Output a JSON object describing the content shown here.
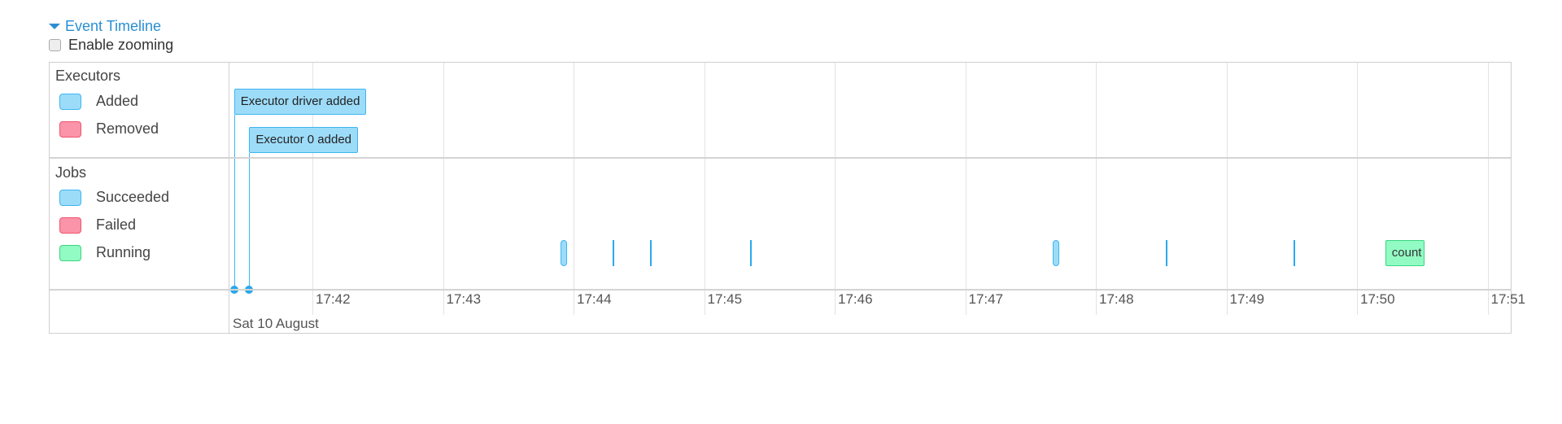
{
  "header": {
    "title": "Event Timeline",
    "zoom_label": "Enable zooming",
    "zoom_checked": false
  },
  "legend": {
    "executors": {
      "label": "Executors",
      "items": [
        {
          "label": "Added",
          "color": "#9ddcf9",
          "border": "#3db5f0"
        },
        {
          "label": "Removed",
          "color": "#fb93a9",
          "border": "#f0546f"
        }
      ]
    },
    "jobs": {
      "label": "Jobs",
      "items": [
        {
          "label": "Succeeded",
          "color": "#9ddcf9",
          "border": "#3db5f0"
        },
        {
          "label": "Failed",
          "color": "#fb93a9",
          "border": "#f0546f"
        },
        {
          "label": "Running",
          "color": "#92fbc4",
          "border": "#3ad67f"
        }
      ]
    }
  },
  "axis": {
    "date": "Sat 10 August",
    "ticks": [
      "17:42",
      "17:43",
      "17:44",
      "17:45",
      "17:46",
      "17:47",
      "17:48",
      "17:49",
      "17:50",
      "17:51"
    ]
  },
  "executor_events": [
    {
      "label": "Executor driver added",
      "time": "17:41:24",
      "status": "added"
    },
    {
      "label": "Executor 0 added",
      "time": "17:41:31",
      "status": "added"
    }
  ],
  "job_events": [
    {
      "start": "17:43:54",
      "end": "17:43:57",
      "status": "succeeded"
    },
    {
      "start": "17:44:18",
      "end": "17:44:18",
      "status": "succeeded"
    },
    {
      "start": "17:44:35",
      "end": "17:44:35",
      "status": "succeeded"
    },
    {
      "start": "17:45:21",
      "end": "17:45:21",
      "status": "succeeded"
    },
    {
      "start": "17:47:40",
      "end": "17:47:42",
      "status": "succeeded"
    },
    {
      "start": "17:48:32",
      "end": "17:48:32",
      "status": "succeeded"
    },
    {
      "start": "17:49:31",
      "end": "17:49:31",
      "status": "succeeded"
    },
    {
      "start": "17:50:13",
      "end": "17:50:31",
      "status": "running",
      "label": "count"
    }
  ]
}
